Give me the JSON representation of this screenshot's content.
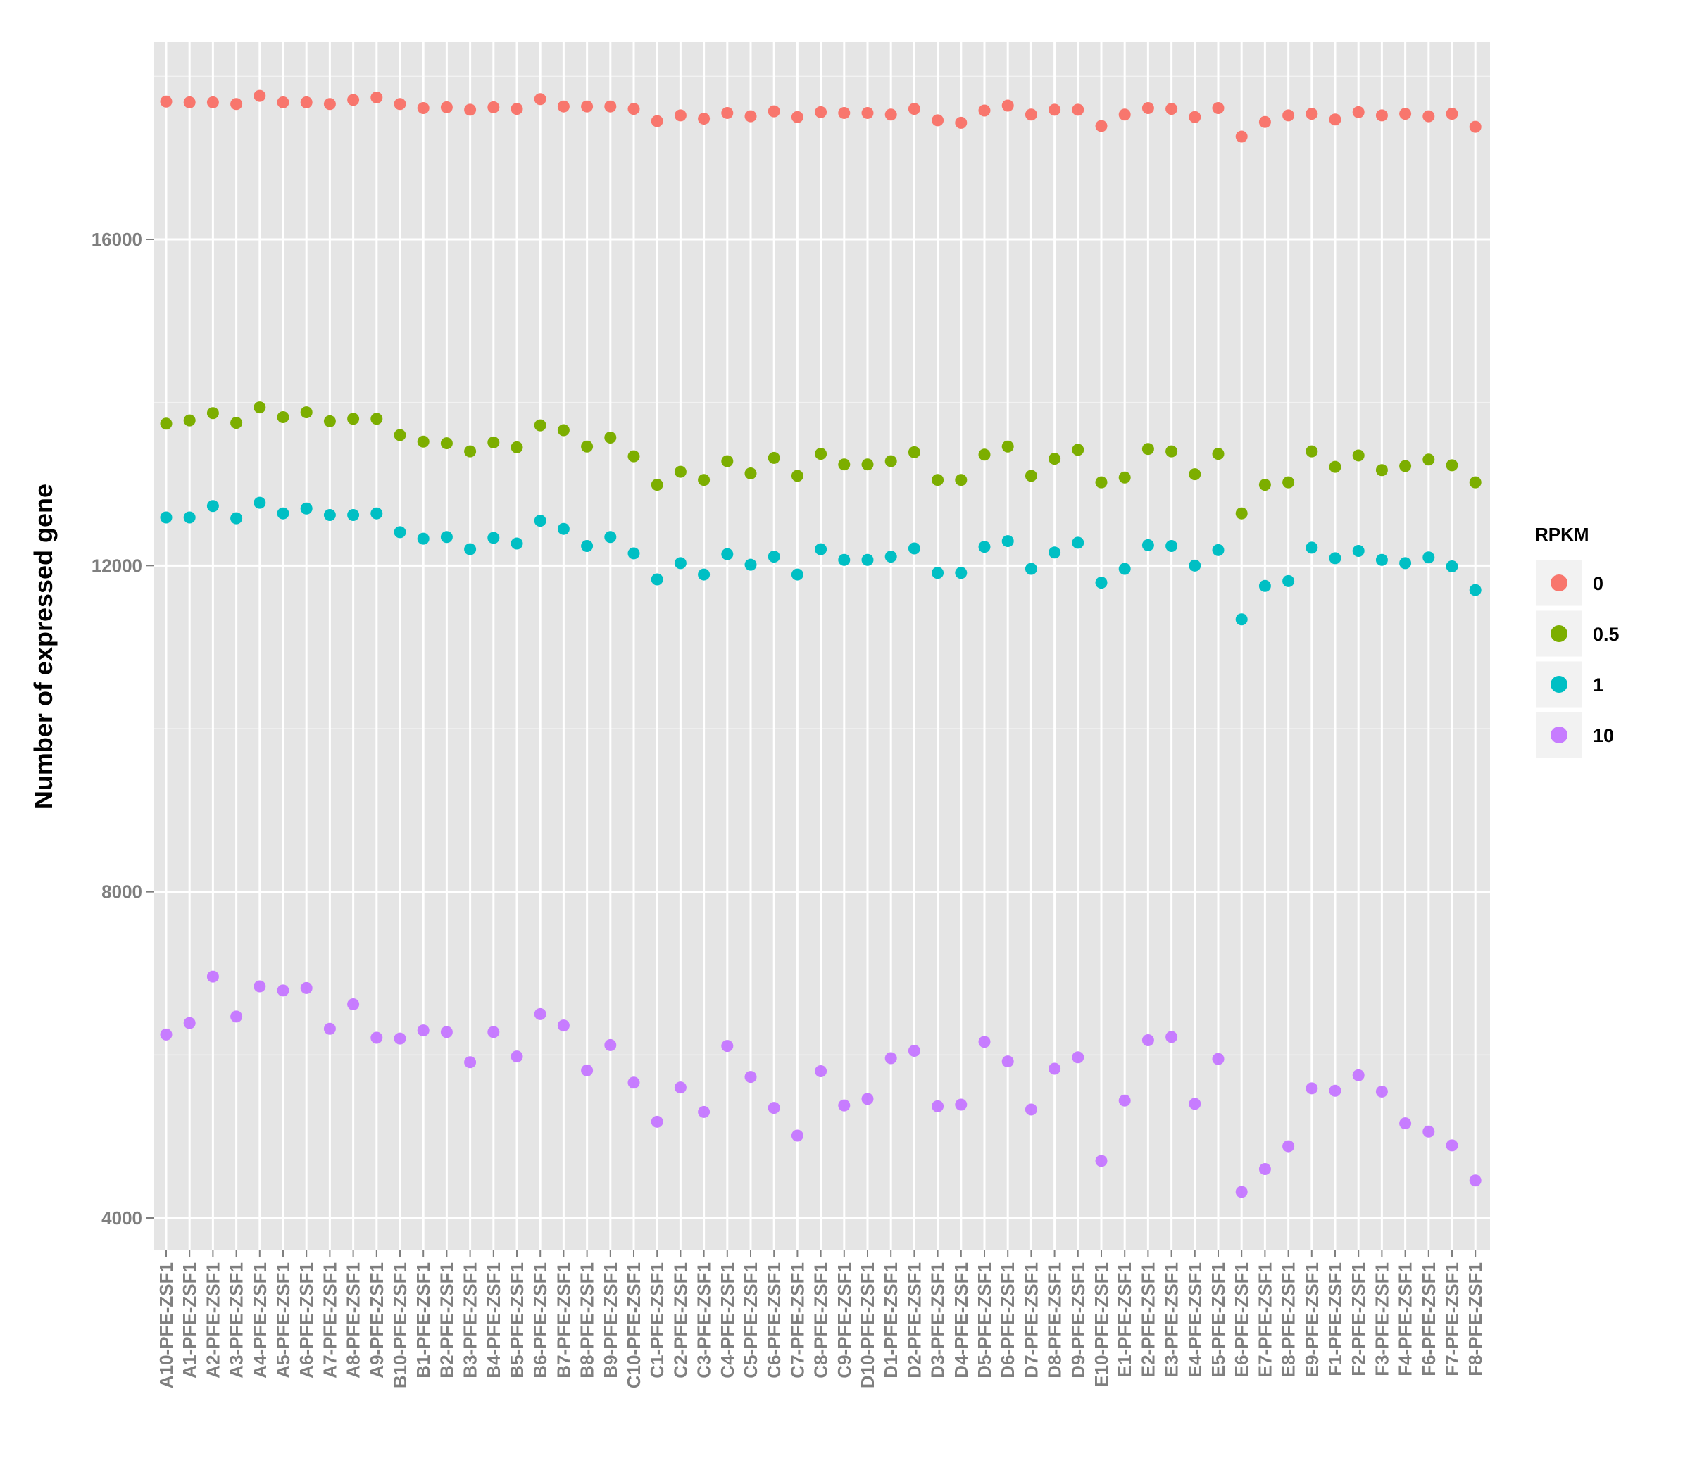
{
  "chart_data": {
    "type": "scatter",
    "title": "",
    "xlabel": "",
    "ylabel": "Number of expressed gene",
    "ylim": [
      3700,
      18700
    ],
    "yticks": [
      4000,
      8000,
      12000,
      16000
    ],
    "y_minor_ticks": [
      6000,
      10000,
      14000,
      18000
    ],
    "grid": true,
    "legend": {
      "title": "RPKM",
      "position": "right"
    },
    "categories": [
      "A10-PFE-ZSF1",
      "A1-PFE-ZSF1",
      "A2-PFE-ZSF1",
      "A3-PFE-ZSF1",
      "A4-PFE-ZSF1",
      "A5-PFE-ZSF1",
      "A6-PFE-ZSF1",
      "A7-PFE-ZSF1",
      "A8-PFE-ZSF1",
      "A9-PFE-ZSF1",
      "B10-PFE-ZSF1",
      "B1-PFE-ZSF1",
      "B2-PFE-ZSF1",
      "B3-PFE-ZSF1",
      "B4-PFE-ZSF1",
      "B5-PFE-ZSF1",
      "B6-PFE-ZSF1",
      "B7-PFE-ZSF1",
      "B8-PFE-ZSF1",
      "B9-PFE-ZSF1",
      "C10-PFE-ZSF1",
      "C1-PFE-ZSF1",
      "C2-PFE-ZSF1",
      "C3-PFE-ZSF1",
      "C4-PFE-ZSF1",
      "C5-PFE-ZSF1",
      "C6-PFE-ZSF1",
      "C7-PFE-ZSF1",
      "C8-PFE-ZSF1",
      "C9-PFE-ZSF1",
      "D10-PFE-ZSF1",
      "D1-PFE-ZSF1",
      "D2-PFE-ZSF1",
      "D3-PFE-ZSF1",
      "D4-PFE-ZSF1",
      "D5-PFE-ZSF1",
      "D6-PFE-ZSF1",
      "D7-PFE-ZSF1",
      "D8-PFE-ZSF1",
      "D9-PFE-ZSF1",
      "E10-PFE-ZSF1",
      "E1-PFE-ZSF1",
      "E2-PFE-ZSF1",
      "E3-PFE-ZSF1",
      "E4-PFE-ZSF1",
      "E5-PFE-ZSF1",
      "E6-PFE-ZSF1",
      "E7-PFE-ZSF1",
      "E8-PFE-ZSF1",
      "E9-PFE-ZSF1",
      "F1-PFE-ZSF1",
      "F2-PFE-ZSF1",
      "F3-PFE-ZSF1",
      "F4-PFE-ZSF1",
      "F6-PFE-ZSF1",
      "F7-PFE-ZSF1",
      "F8-PFE-ZSF1"
    ],
    "series": [
      {
        "name": "0",
        "color": "#F8766D",
        "values": [
          17690,
          17680,
          17680,
          17660,
          17760,
          17680,
          17680,
          17660,
          17710,
          17740,
          17660,
          17610,
          17620,
          17590,
          17620,
          17600,
          17720,
          17630,
          17630,
          17630,
          17600,
          17450,
          17520,
          17480,
          17550,
          17510,
          17570,
          17500,
          17560,
          17550,
          17550,
          17530,
          17600,
          17460,
          17430,
          17580,
          17640,
          17530,
          17590,
          17590,
          17390,
          17530,
          17610,
          17600,
          17500,
          17610,
          17260,
          17440,
          17520,
          17540,
          17470,
          17560,
          17520,
          17540,
          17510,
          17540,
          17380
        ]
      },
      {
        "name": "0.5",
        "color": "#7CAE00",
        "values": [
          13740,
          13780,
          13870,
          13750,
          13940,
          13820,
          13880,
          13770,
          13800,
          13800,
          13600,
          13520,
          13500,
          13400,
          13510,
          13450,
          13720,
          13660,
          13460,
          13570,
          13340,
          12990,
          13150,
          13050,
          13280,
          13130,
          13320,
          13100,
          13370,
          13240,
          13240,
          13280,
          13390,
          13050,
          13050,
          13360,
          13460,
          13100,
          13310,
          13420,
          13020,
          13080,
          13430,
          13400,
          13120,
          13370,
          12640,
          12990,
          13020,
          13400,
          13210,
          13350,
          13170,
          13220,
          13300,
          13230,
          13020
        ]
      },
      {
        "name": "1",
        "color": "#00BFC4",
        "values": [
          12590,
          12590,
          12730,
          12580,
          12770,
          12640,
          12700,
          12620,
          12620,
          12640,
          12410,
          12330,
          12350,
          12200,
          12340,
          12270,
          12550,
          12450,
          12240,
          12350,
          12150,
          11830,
          12030,
          11890,
          12140,
          12010,
          12110,
          11890,
          12200,
          12070,
          12070,
          12110,
          12210,
          11910,
          11910,
          12230,
          12300,
          11960,
          12160,
          12280,
          11790,
          11960,
          12250,
          12240,
          12000,
          12190,
          11340,
          11750,
          11810,
          12220,
          12090,
          12180,
          12070,
          12030,
          12100,
          11990,
          11700
        ]
      },
      {
        "name": "10",
        "color": "#C77CFF",
        "values": [
          6250,
          6390,
          6960,
          6470,
          6840,
          6790,
          6820,
          6320,
          6620,
          6210,
          6200,
          6300,
          6280,
          5910,
          6280,
          5980,
          6500,
          6360,
          5810,
          6120,
          5660,
          5180,
          5600,
          5300,
          6110,
          5730,
          5350,
          5010,
          5800,
          5380,
          5460,
          5960,
          6050,
          5370,
          5390,
          6160,
          5920,
          5330,
          5830,
          5970,
          4700,
          5440,
          6180,
          6220,
          5400,
          5950,
          4320,
          4600,
          4880,
          5590,
          5560,
          5750,
          5550,
          5160,
          5060,
          4890,
          4460
        ]
      }
    ]
  }
}
